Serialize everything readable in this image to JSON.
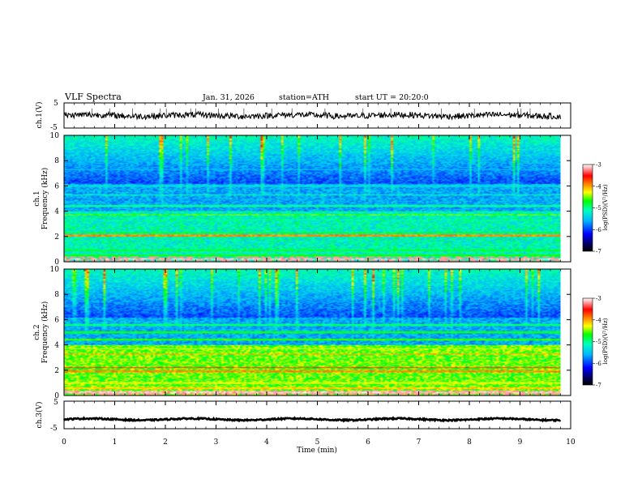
{
  "header": {
    "title": "VLF  Spectra",
    "date": "Jan. 31, 2026",
    "station": "station=ATH",
    "start": "start  UT  =   20:20:0"
  },
  "chart_data": [
    {
      "type": "line",
      "name": "ch1-waveform",
      "ylabel": "ch.1(V)",
      "ylim": [
        -5,
        5
      ],
      "yticks": [
        "5",
        "-5"
      ],
      "x_range_min": [
        0,
        9.8
      ],
      "baseline_volts": 0,
      "noise_amplitude_volts": 1.2,
      "spike_times_min": [
        0.55,
        0.9,
        1.35,
        1.9,
        2.02,
        2.5,
        2.6,
        3.05,
        3.55,
        4.1,
        4.5,
        5.15,
        5.9,
        6.45,
        7.45,
        8.1,
        8.95,
        9.02,
        9.2
      ]
    },
    {
      "type": "heatmap",
      "name": "ch1-spectrogram",
      "ylabel": "ch.1",
      "ylabel2": "Frequency (kHz)",
      "ylim": [
        0,
        10
      ],
      "yticks": [
        "0",
        "2",
        "4",
        "6",
        "8",
        "10"
      ],
      "colorbar": {
        "label": "log(PSD)(V²/Hz)",
        "ticks": [
          "-3",
          "-4",
          "-5",
          "-6",
          "-7"
        ],
        "range": [
          -7,
          -3
        ]
      },
      "lines_khz": [
        {
          "f": 0.2,
          "v": -3.0
        },
        {
          "f": 0.5,
          "v": -4.6
        },
        {
          "f": 0.9,
          "v": -4.7
        },
        {
          "f": 2.1,
          "v": -3.8
        },
        {
          "f": 2.3,
          "v": -4.6
        },
        {
          "f": 3.3,
          "v": -5.0
        },
        {
          "f": 3.7,
          "v": -4.4
        },
        {
          "f": 4.4,
          "v": -4.9
        },
        {
          "f": 5.3,
          "v": -5.0
        },
        {
          "f": 6.0,
          "v": -5.2
        },
        {
          "f": 7.3,
          "v": -5.4
        }
      ]
    },
    {
      "type": "heatmap",
      "name": "ch2-spectrogram",
      "ylabel": "ch.2",
      "ylabel2": "Frequency (kHz)",
      "ylim": [
        0,
        10
      ],
      "yticks": [
        "0",
        "2",
        "4",
        "6",
        "8",
        "10"
      ],
      "colorbar": {
        "label": "log(PSD)(V²/Hz)",
        "ticks": [
          "-3",
          "-4",
          "-5",
          "-6",
          "-7"
        ],
        "range": [
          -7,
          -3
        ]
      },
      "lines_khz": [
        {
          "f": 0.25,
          "v": -3.0
        },
        {
          "f": 0.6,
          "v": -4.0
        },
        {
          "f": 1.0,
          "v": -4.2
        },
        {
          "f": 1.9,
          "v": -3.8
        },
        {
          "f": 2.2,
          "v": -3.6
        },
        {
          "f": 2.6,
          "v": -4.5
        },
        {
          "f": 3.3,
          "v": -3.9
        },
        {
          "f": 3.7,
          "v": -4.2
        },
        {
          "f": 4.4,
          "v": -4.5
        },
        {
          "f": 5.0,
          "v": -4.6
        },
        {
          "f": 5.6,
          "v": -4.8
        }
      ]
    },
    {
      "type": "line",
      "name": "ch3-waveform",
      "ylabel": "ch.3(V)",
      "ylim": [
        -5,
        5
      ],
      "yticks": [
        "5",
        "-5"
      ],
      "x_range_min": [
        0,
        9.8
      ],
      "baseline_volts": -1.6,
      "noise_amplitude_volts": 0.25,
      "xlabel": "Time  (min)",
      "xticks": [
        "0",
        "1",
        "2",
        "3",
        "4",
        "5",
        "6",
        "7",
        "8",
        "9",
        "10"
      ],
      "xlim": [
        0,
        10
      ]
    }
  ]
}
